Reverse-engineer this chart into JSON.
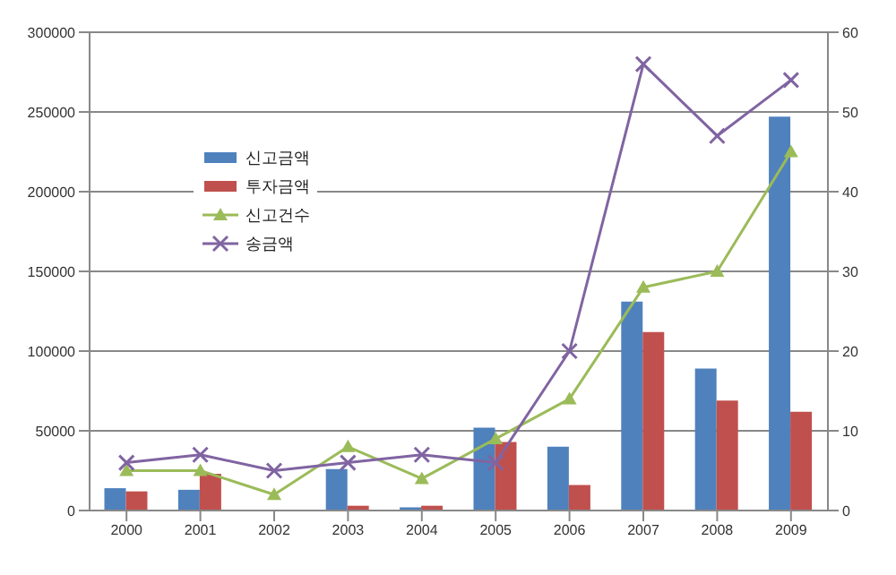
{
  "chart_data": {
    "type": "bar",
    "categories": [
      "2000",
      "2001",
      "2002",
      "2003",
      "2004",
      "2005",
      "2006",
      "2007",
      "2008",
      "2009"
    ],
    "series": [
      {
        "name": "신고금액",
        "color": "#4f81bd",
        "values": [
          14000,
          13000,
          0,
          26000,
          2000,
          52000,
          40000,
          131000,
          89000,
          247000
        ]
      },
      {
        "name": "투자금액",
        "color": "#c0504d",
        "values": [
          12000,
          23000,
          0,
          3000,
          3000,
          43000,
          16000,
          112000,
          69000,
          62000
        ]
      },
      {
        "name": "신고건수",
        "type": "line",
        "axis": "y2",
        "marker": "triangle",
        "color": "#9bbb59",
        "values": [
          5,
          5,
          2,
          8,
          4,
          9,
          14,
          28,
          30,
          45
        ]
      },
      {
        "name": "송금액",
        "type": "line",
        "axis": "y2",
        "marker": "cross",
        "color": "#8064a2",
        "values": [
          6,
          7,
          5,
          6,
          7,
          6,
          20,
          56,
          47,
          54
        ]
      }
    ],
    "ylim": [
      0,
      300000
    ],
    "yticks": [
      0,
      50000,
      100000,
      150000,
      200000,
      250000,
      300000
    ],
    "y2lim": [
      0,
      60
    ],
    "y2ticks": [
      0,
      10,
      20,
      30,
      40,
      50,
      60
    ],
    "grid": "y",
    "legend": "top left"
  }
}
